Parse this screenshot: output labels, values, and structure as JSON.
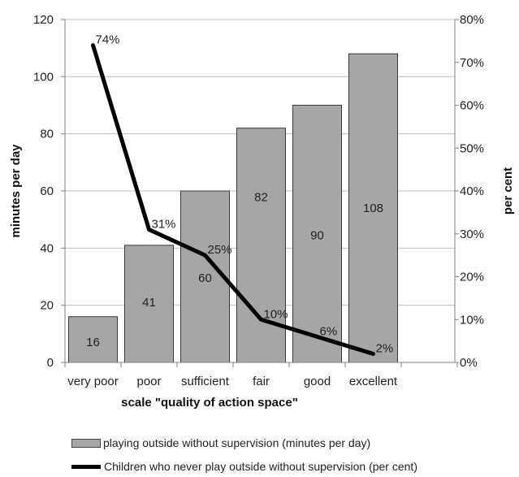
{
  "chart_data": {
    "type": "bar+line",
    "categories": [
      "very poor",
      "poor",
      "sufficient",
      "fair",
      "good",
      "excellent"
    ],
    "bar_series": {
      "name": "playing outside without supervision (minutes per day)",
      "values": [
        16,
        41,
        60,
        82,
        90,
        108
      ],
      "value_labels": [
        "16",
        "41",
        "60",
        "82",
        "90",
        "108"
      ],
      "color": "#a6a6a6"
    },
    "line_series": {
      "name": "Children who never play outside without supervision (per cent)",
      "values": [
        74,
        31,
        25,
        10,
        6,
        2
      ],
      "value_labels": [
        "74%",
        "31%",
        "25%",
        "10%",
        "6%",
        "2%"
      ],
      "color": "#000000"
    },
    "xlabel": "scale \"quality of action space\"",
    "ylabel_left": "minutes per day",
    "ylabel_right": "per cent",
    "ylim_left": [
      0,
      120
    ],
    "ylim_right": [
      0,
      80
    ],
    "yticks_left": [
      "0",
      "20",
      "40",
      "60",
      "80",
      "100",
      "120"
    ],
    "yticks_right": [
      "0%",
      "10%",
      "20%",
      "30%",
      "40%",
      "50%",
      "60%",
      "70%",
      "80%"
    ],
    "grid": true,
    "legend_placement": "bottom"
  }
}
